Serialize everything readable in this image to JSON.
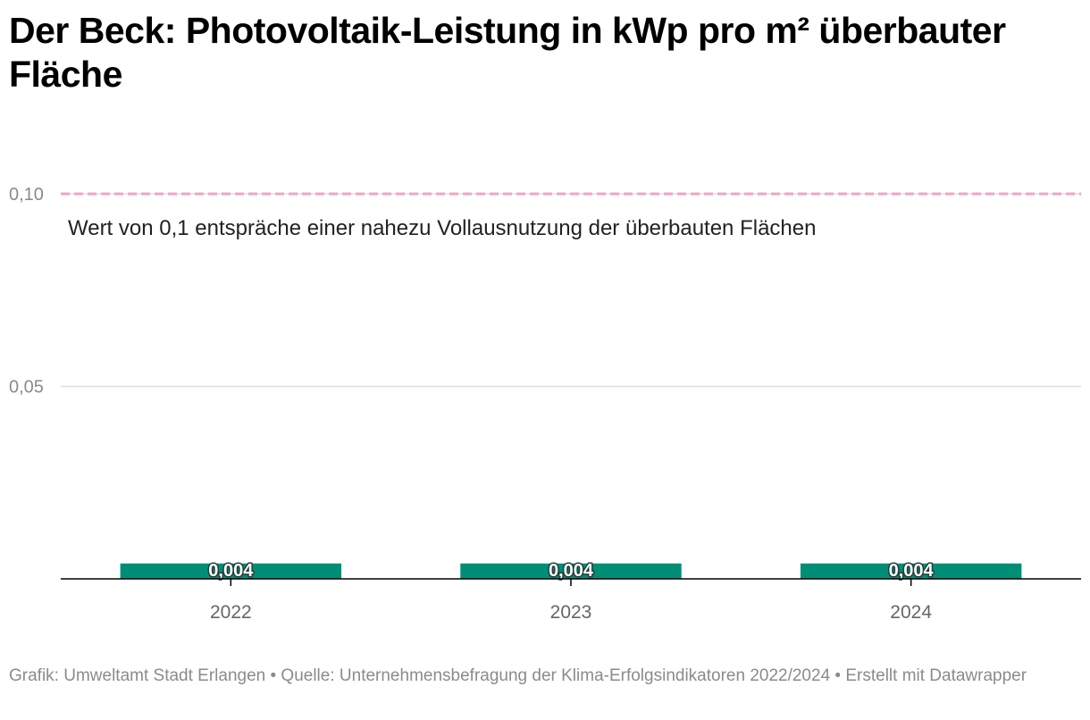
{
  "title": "Der Beck: Photovoltaik-Leistung in kWp pro m² überbauter Fläche",
  "footer": "Grafik: Umweltamt Stadt Erlangen • Quelle: Unternehmensbefragung der Klima-Erfolgsindikatoren 2022/2024 • Erstellt mit Datawrapper",
  "colors": {
    "bar": "#008e76",
    "reference_line": "#f2a4c6",
    "grid": "#e0e0e0",
    "axis": "#000000",
    "tick_label": "#8b8b8b"
  },
  "chart_data": {
    "type": "bar",
    "categories": [
      "2022",
      "2023",
      "2024"
    ],
    "values": [
      0.004,
      0.004,
      0.004
    ],
    "value_labels": [
      "0,004",
      "0,004",
      "0,004"
    ],
    "ylim": [
      0,
      0.1
    ],
    "yticks": [
      0.05,
      0.1
    ],
    "ytick_labels": [
      "0,05",
      "0,10"
    ],
    "grid": true,
    "reference_line": {
      "value": 0.1,
      "style": "dashed",
      "label": "Wert von 0,1 entspräche einer nahezu Vollausnutzung der überbauten Flächen"
    }
  }
}
